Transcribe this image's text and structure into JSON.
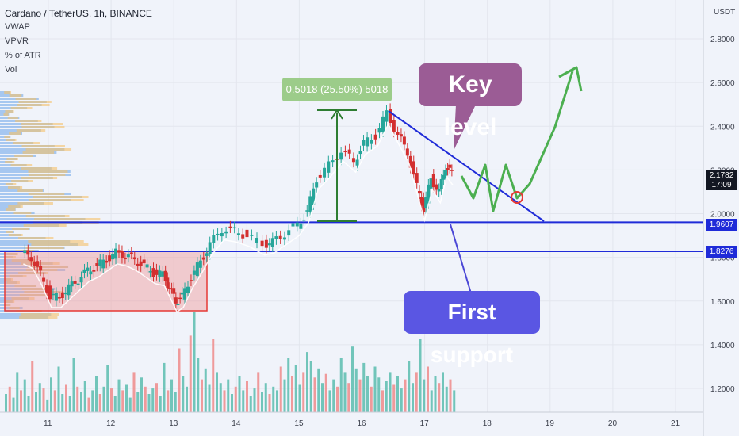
{
  "header": {
    "symbol": "Cardano / TetherUS, 1h, BINANCE",
    "indicators": [
      "VWAP",
      "VPVR",
      "% of ATR",
      "Vol"
    ],
    "currency": "USDT"
  },
  "chart_data": {
    "type": "candlestick",
    "x_ticks": [
      "11",
      "12",
      "13",
      "14",
      "15",
      "16",
      "17",
      "18",
      "19",
      "20",
      "21"
    ],
    "y_ticks": [
      "2.8000",
      "2.6000",
      "2.4000",
      "2.2000",
      "2.0000",
      "1.8000",
      "1.6000",
      "1.4000",
      "1.2000"
    ],
    "ylim": [
      1.08,
      2.95
    ],
    "current_price": "2.1782",
    "countdown": "17:09",
    "levels": [
      {
        "label": "1.9607",
        "value": 1.9607,
        "color": "#1f2bd8"
      },
      {
        "label": "1.8276",
        "value": 1.8276,
        "color": "#1f2bd8"
      }
    ],
    "measure_label": "0.5018 (25.50%) 5018",
    "price_path": [
      [
        10.6,
        1.82
      ],
      [
        10.75,
        1.8
      ],
      [
        10.9,
        1.72
      ],
      [
        11.05,
        1.62
      ],
      [
        11.2,
        1.62
      ],
      [
        11.35,
        1.66
      ],
      [
        11.5,
        1.7
      ],
      [
        11.65,
        1.74
      ],
      [
        11.8,
        1.76
      ],
      [
        11.95,
        1.79
      ],
      [
        12.1,
        1.82
      ],
      [
        12.25,
        1.81
      ],
      [
        12.4,
        1.79
      ],
      [
        12.55,
        1.76
      ],
      [
        12.7,
        1.73
      ],
      [
        12.85,
        1.72
      ],
      [
        12.95,
        1.66
      ],
      [
        13.05,
        1.6
      ],
      [
        13.15,
        1.62
      ],
      [
        13.3,
        1.71
      ],
      [
        13.45,
        1.78
      ],
      [
        13.6,
        1.86
      ],
      [
        13.8,
        1.93
      ],
      [
        14.0,
        1.92
      ],
      [
        14.2,
        1.9
      ],
      [
        14.45,
        1.86
      ],
      [
        14.6,
        1.87
      ],
      [
        14.8,
        1.91
      ],
      [
        15.0,
        1.95
      ],
      [
        15.15,
        2.01
      ],
      [
        15.3,
        2.16
      ],
      [
        15.5,
        2.22
      ],
      [
        15.7,
        2.29
      ],
      [
        15.9,
        2.24
      ],
      [
        16.05,
        2.32
      ],
      [
        16.25,
        2.36
      ],
      [
        16.42,
        2.46
      ],
      [
        16.6,
        2.36
      ],
      [
        16.75,
        2.28
      ],
      [
        16.9,
        2.12
      ],
      [
        17.0,
        2.02
      ],
      [
        17.12,
        2.16
      ],
      [
        17.25,
        2.1
      ],
      [
        17.35,
        2.22
      ],
      [
        17.45,
        2.18
      ]
    ],
    "volume": [
      0.1,
      0.14,
      0.08,
      0.22,
      0.12,
      0.18,
      0.09,
      0.28,
      0.11,
      0.16,
      0.13,
      0.07,
      0.19,
      0.12,
      0.25,
      0.1,
      0.15,
      0.09,
      0.3,
      0.14,
      0.11,
      0.17,
      0.08,
      0.12,
      0.2,
      0.1,
      0.14,
      0.26,
      0.13,
      0.09,
      0.18,
      0.12,
      0.15,
      0.08,
      0.22,
      0.11,
      0.19,
      0.14,
      0.1,
      0.13,
      0.16,
      0.09,
      0.27,
      0.12,
      0.18,
      0.11,
      0.35,
      0.2,
      0.14,
      0.42,
      0.55,
      0.3,
      0.18,
      0.24,
      0.15,
      0.4,
      0.22,
      0.16,
      0.12,
      0.18,
      0.1,
      0.14,
      0.2,
      0.12,
      0.17,
      0.09,
      0.13,
      0.22,
      0.11,
      0.16,
      0.1,
      0.14,
      0.12,
      0.25,
      0.18,
      0.3,
      0.2,
      0.26,
      0.15,
      0.22,
      0.33,
      0.28,
      0.19,
      0.24,
      0.16,
      0.21,
      0.12,
      0.18,
      0.14,
      0.3,
      0.22,
      0.16,
      0.36,
      0.24,
      0.18,
      0.27,
      0.2,
      0.14,
      0.25,
      0.19,
      0.12,
      0.17,
      0.22,
      0.15,
      0.2,
      0.13,
      0.18,
      0.28,
      0.16,
      0.22,
      0.4,
      0.18,
      0.25,
      0.12,
      0.2,
      0.16,
      0.22,
      0.14,
      0.18,
      0.12
    ]
  },
  "annotations": {
    "key_level": "Key level",
    "first_support": "First support"
  }
}
